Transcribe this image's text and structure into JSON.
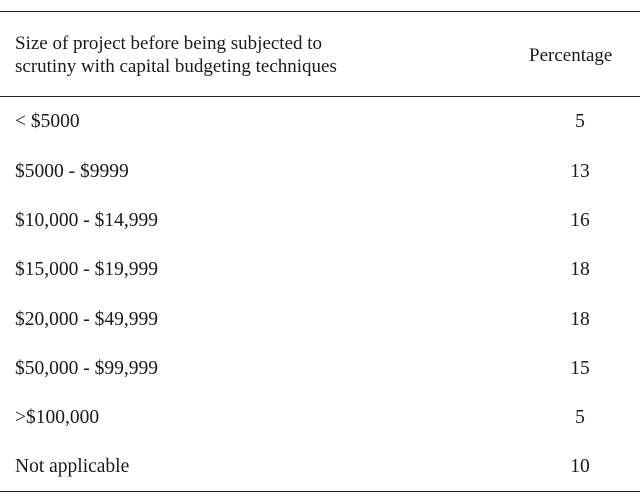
{
  "table": {
    "header": {
      "size_line1": "Size of project before being subjected to",
      "size_line2": "scrutiny with capital budgeting techniques",
      "percentage": "Percentage"
    },
    "rows": [
      {
        "size": "< $5000",
        "percentage": "5"
      },
      {
        "size": "$5000 - $9999",
        "percentage": "13"
      },
      {
        "size": "$10,000 - $14,999",
        "percentage": "16"
      },
      {
        "size": "$15,000 - $19,999",
        "percentage": "18"
      },
      {
        "size": "$20,000 - $49,999",
        "percentage": "18"
      },
      {
        "size": "$50,000 - $99,999",
        "percentage": "15"
      },
      {
        "size": ">$100,000",
        "percentage": "5"
      },
      {
        "size": "Not applicable",
        "percentage": "10"
      }
    ]
  }
}
